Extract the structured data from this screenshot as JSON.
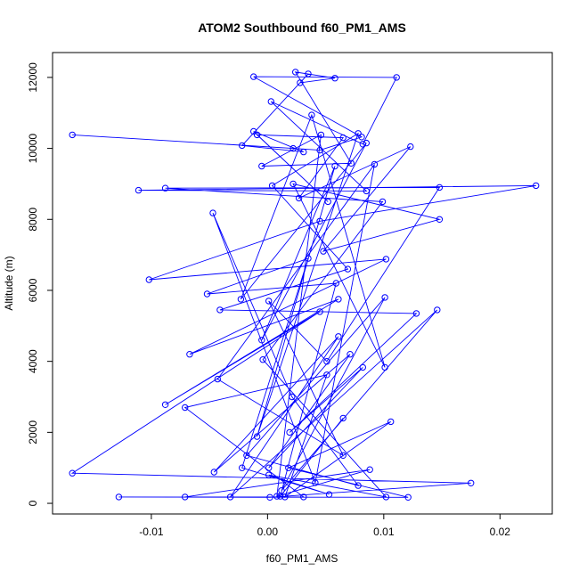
{
  "chart_data": {
    "type": "line",
    "title": "ATOM2 Southbound f60_PM1_AMS",
    "xlabel": "f60_PM1_AMS",
    "ylabel": "Altitude (m)",
    "xlim": [
      -0.0185,
      0.0245
    ],
    "ylim": [
      -300,
      12700
    ],
    "x_ticks": [
      -0.01,
      0.0,
      0.01,
      0.02
    ],
    "x_tick_labels": [
      "-0.01",
      "0.00",
      "0.01",
      "0.02"
    ],
    "y_ticks": [
      0,
      2000,
      4000,
      6000,
      8000,
      10000,
      12000
    ],
    "y_tick_labels": [
      "0",
      "2000",
      "4000",
      "6000",
      "8000",
      "10000",
      "12000"
    ],
    "series_color": "#0000ff",
    "marker": "open-circle",
    "series": [
      {
        "values": [
          {
            "x": -0.0168,
            "y": 10380
          },
          {
            "x": 0.0022,
            "y": 10000
          },
          {
            "x": 0.0045,
            "y": 9950
          },
          {
            "x": 0.0081,
            "y": 10320
          },
          {
            "x": -0.0012,
            "y": 12020
          },
          {
            "x": 0.0111,
            "y": 12000
          },
          {
            "x": 0.0082,
            "y": 10120
          },
          {
            "x": 0.0003,
            "y": 11320
          },
          {
            "x": 0.0085,
            "y": 8800
          },
          {
            "x": -0.0111,
            "y": 8820
          },
          {
            "x": 0.0231,
            "y": 8950
          },
          {
            "x": 0.0045,
            "y": 7950
          },
          {
            "x": -0.0102,
            "y": 6300
          },
          {
            "x": 0.0102,
            "y": 6880
          },
          {
            "x": -0.0067,
            "y": 4200
          },
          {
            "x": 0.0061,
            "y": 5750
          },
          {
            "x": -0.0088,
            "y": 2780
          },
          {
            "x": 0.0045,
            "y": 5400
          },
          {
            "x": -0.0168,
            "y": 850
          },
          {
            "x": 0.0175,
            "y": 570
          },
          {
            "x": 0.0002,
            "y": 170
          },
          {
            "x": -0.0128,
            "y": 180
          },
          {
            "x": 0.0121,
            "y": 170
          },
          {
            "x": 0.0018,
            "y": 1000
          },
          {
            "x": 0.0106,
            "y": 2300
          },
          {
            "x": 0.0015,
            "y": 180
          },
          {
            "x": 0.0051,
            "y": 3620
          },
          {
            "x": -0.0071,
            "y": 2700
          },
          {
            "x": 0.0031,
            "y": 180
          },
          {
            "x": -0.0071,
            "y": 180
          },
          {
            "x": 0.0088,
            "y": 950
          },
          {
            "x": 0.0008,
            "y": 200
          },
          {
            "x": 0.0046,
            "y": 10380
          },
          {
            "x": -0.0005,
            "y": 9500
          },
          {
            "x": 0.0072,
            "y": 9580
          },
          {
            "x": 0.0024,
            "y": 12150
          },
          {
            "x": 0.0058,
            "y": 11980
          },
          {
            "x": 0.0028,
            "y": 11850
          },
          {
            "x": 0.0035,
            "y": 12100
          },
          {
            "x": -0.0022,
            "y": 10080
          },
          {
            "x": 0.0031,
            "y": 9900
          },
          {
            "x": -0.0012,
            "y": 10480
          },
          {
            "x": 0.0052,
            "y": 8500
          },
          {
            "x": -0.0009,
            "y": 10380
          },
          {
            "x": 0.0065,
            "y": 10300
          },
          {
            "x": 0.0027,
            "y": 8600
          },
          {
            "x": 0.0123,
            "y": 10050
          },
          {
            "x": 0.0048,
            "y": 7100
          },
          {
            "x": 0.0148,
            "y": 8000
          },
          {
            "x": 0.0022,
            "y": 9000
          },
          {
            "x": 0.0101,
            "y": 3830
          },
          {
            "x": 0.0038,
            "y": 10940
          },
          {
            "x": -0.0023,
            "y": 5750
          },
          {
            "x": 0.0085,
            "y": 10150
          },
          {
            "x": -0.0005,
            "y": 4600
          },
          {
            "x": 0.0058,
            "y": 9500
          },
          {
            "x": -0.0009,
            "y": 1880
          },
          {
            "x": 0.0078,
            "y": 10420
          },
          {
            "x": 0.0004,
            "y": 8950
          },
          {
            "x": 0.0069,
            "y": 6600
          },
          {
            "x": -0.0041,
            "y": 5450
          },
          {
            "x": 0.0128,
            "y": 5350
          },
          {
            "x": 0.0019,
            "y": 2000
          },
          {
            "x": 0.0082,
            "y": 3830
          },
          {
            "x": 0.0001,
            "y": 1000
          },
          {
            "x": 0.0071,
            "y": 4200
          },
          {
            "x": -0.0046,
            "y": 880
          },
          {
            "x": 0.0061,
            "y": 4700
          },
          {
            "x": -0.0032,
            "y": 180
          },
          {
            "x": 0.0146,
            "y": 5450
          },
          {
            "x": 0.0012,
            "y": 360
          },
          {
            "x": 0.0101,
            "y": 5800
          },
          {
            "x": -0.0018,
            "y": 1350
          },
          {
            "x": 0.0078,
            "y": 500
          },
          {
            "x": 0.0021,
            "y": 3000
          },
          {
            "x": -0.0047,
            "y": 8180
          },
          {
            "x": 0.0041,
            "y": 580
          },
          {
            "x": 0.0092,
            "y": 9550
          },
          {
            "x": -0.0043,
            "y": 3500
          },
          {
            "x": 0.0065,
            "y": 1350
          },
          {
            "x": 0.0001,
            "y": 5700
          },
          {
            "x": 0.0051,
            "y": 4000
          },
          {
            "x": 0.0148,
            "y": 8900
          },
          {
            "x": -0.0088,
            "y": 8880
          },
          {
            "x": 0.0099,
            "y": 8500
          },
          {
            "x": -0.0004,
            "y": 4050
          },
          {
            "x": 0.0102,
            "y": 180
          },
          {
            "x": 0.0001,
            "y": 800
          },
          {
            "x": 0.0053,
            "y": 250
          },
          {
            "x": -0.0022,
            "y": 1000
          },
          {
            "x": 0.0035,
            "y": 6900
          },
          {
            "x": -0.0052,
            "y": 5900
          },
          {
            "x": 0.0059,
            "y": 6200
          },
          {
            "x": 0.0011,
            "y": 200
          },
          {
            "x": 0.0065,
            "y": 2400
          }
        ]
      }
    ]
  }
}
